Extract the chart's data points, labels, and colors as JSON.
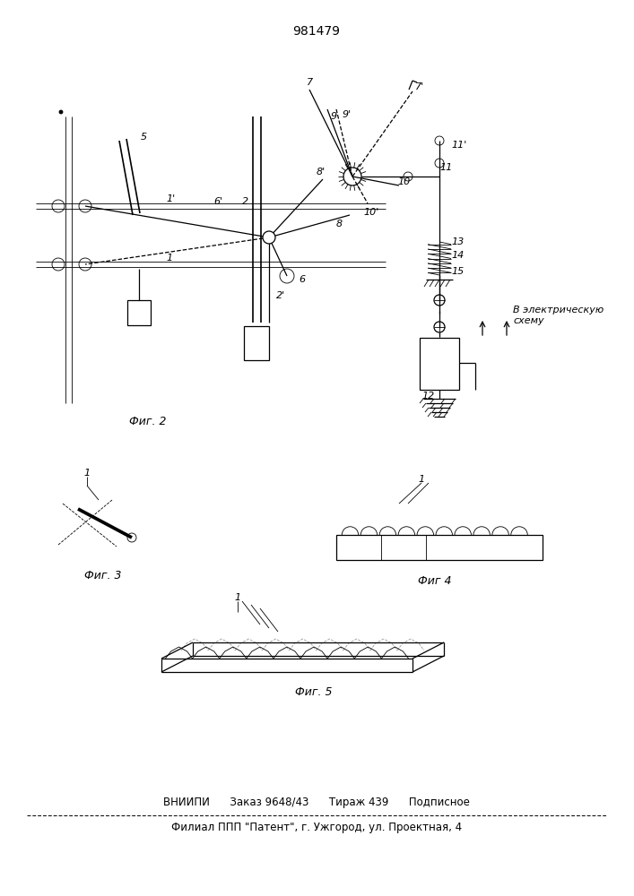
{
  "title": "981479",
  "fig2_label": "Фиг. 2",
  "fig3_label": "Фиг. 3",
  "fig4_label": "Фиг 4",
  "fig5_label": "Фиг. 5",
  "footer_line1": "ВНИИПИ      Заказ 9648/43      Тираж 439      Подписное",
  "footer_line2": "Филиал ППП \"Патент\", г. Ужгород, ул. Проектная, 4",
  "bg_color": "#ffffff",
  "line_color": "#000000",
  "lw": 0.9,
  "tlw": 0.6
}
